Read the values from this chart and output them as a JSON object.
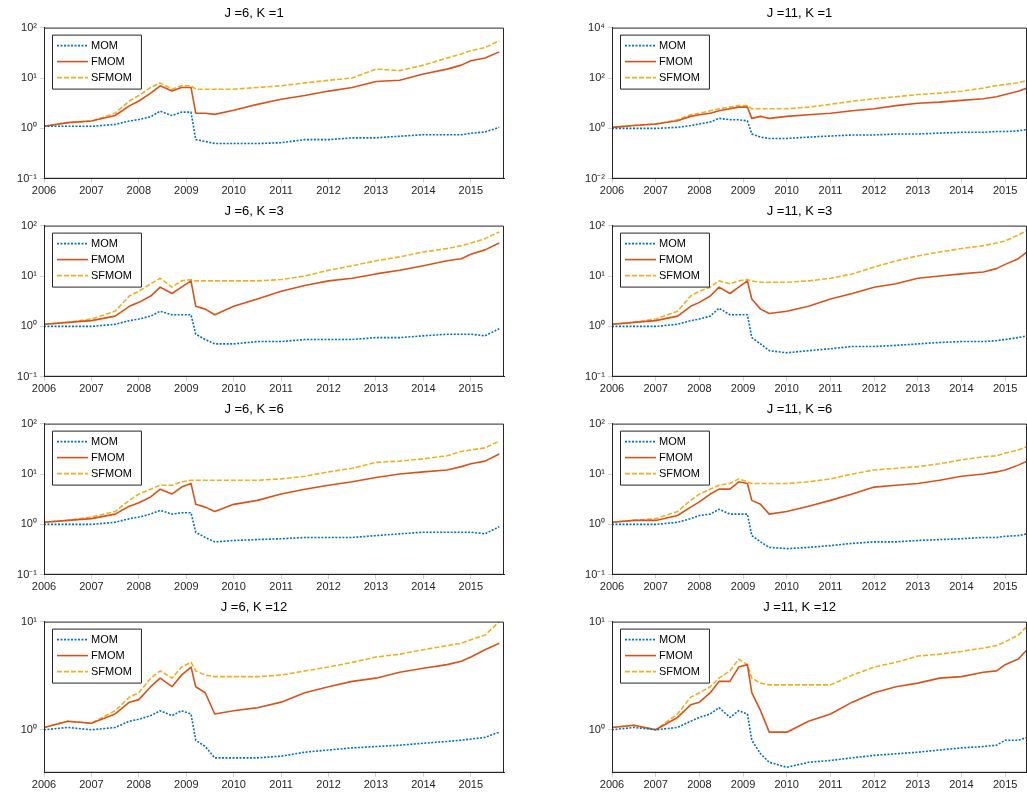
{
  "chart_data": [
    {
      "type": "line",
      "title": "J =6, K =1",
      "legend": "top left",
      "log": "y",
      "xlim": [
        2006,
        2015.7
      ],
      "xticks": [
        2006,
        2007,
        2008,
        2009,
        2010,
        2011,
        2012,
        2013,
        2014,
        2015
      ],
      "ylim": [
        0.1,
        100
      ],
      "yticks": [
        {
          "value": 0.1,
          "label": "10⁻¹"
        },
        {
          "value": 1,
          "label": "10⁰"
        },
        {
          "value": 10,
          "label": "10¹"
        },
        {
          "value": 100,
          "label": "10²"
        }
      ],
      "x": [
        2006,
        2006.5,
        2007,
        2007.5,
        2007.8,
        2008,
        2008.25,
        2008.45,
        2008.7,
        2008.9,
        2009.1,
        2009.2,
        2009.4,
        2009.6,
        2010,
        2010.5,
        2011,
        2011.5,
        2012,
        2012.5,
        2013,
        2013.5,
        2014,
        2014.5,
        2014.8,
        2015,
        2015.3,
        2015.6
      ],
      "series": [
        {
          "name": "MOM",
          "color": "#0072bd",
          "line_style": "dotted",
          "values": [
            1.1,
            1.1,
            1.1,
            1.2,
            1.4,
            1.5,
            1.7,
            2.2,
            1.8,
            2.1,
            2.1,
            0.6,
            0.55,
            0.5,
            0.5,
            0.5,
            0.52,
            0.6,
            0.6,
            0.65,
            0.65,
            0.7,
            0.75,
            0.75,
            0.75,
            0.8,
            0.85,
            1.05
          ]
        },
        {
          "name": "FMOM",
          "color": "#d95319",
          "line_style": "solid",
          "values": [
            1.1,
            1.3,
            1.4,
            1.8,
            2.8,
            3.5,
            5,
            7,
            5.5,
            6.5,
            6.5,
            2,
            2,
            1.9,
            2.3,
            3,
            3.8,
            4.5,
            5.5,
            6.5,
            8.5,
            9,
            12,
            15,
            18,
            22,
            25,
            33
          ]
        },
        {
          "name": "SFMOM",
          "color": "#edb120",
          "line_style": "dashed",
          "values": [
            1.1,
            1.3,
            1.4,
            2,
            3.5,
            4.5,
            6.5,
            8,
            6,
            7,
            7,
            6,
            6,
            6,
            6,
            6.5,
            7,
            8,
            9,
            10,
            15,
            14,
            18,
            25,
            30,
            35,
            40,
            55
          ]
        }
      ]
    },
    {
      "type": "line",
      "title": "J =11, K =1",
      "legend": "top left",
      "log": "y",
      "xlim": [
        2006,
        2015.5
      ],
      "xticks": [
        2006,
        2007,
        2008,
        2009,
        2010,
        2011,
        2012,
        2013,
        2014,
        2015
      ],
      "ylim": [
        0.01,
        10000
      ],
      "yticks": [
        {
          "value": 0.01,
          "label": "10⁻²"
        },
        {
          "value": 1,
          "label": "10⁰"
        },
        {
          "value": 100,
          "label": "10²"
        },
        {
          "value": 10000,
          "label": "10⁴"
        }
      ],
      "x": [
        2006,
        2006.5,
        2007,
        2007.5,
        2007.8,
        2008,
        2008.25,
        2008.45,
        2008.7,
        2008.9,
        2009.1,
        2009.2,
        2009.4,
        2009.6,
        2010,
        2010.5,
        2011,
        2011.5,
        2012,
        2012.5,
        2013,
        2013.5,
        2014,
        2014.5,
        2014.8,
        2015,
        2015.3,
        2015.5
      ],
      "series": [
        {
          "name": "MOM",
          "color": "#0072bd",
          "line_style": "dotted",
          "values": [
            1,
            1,
            1,
            1.1,
            1.3,
            1.5,
            1.8,
            2.5,
            2.2,
            2.2,
            2,
            0.6,
            0.45,
            0.4,
            0.4,
            0.45,
            0.5,
            0.55,
            0.55,
            0.6,
            0.6,
            0.65,
            0.7,
            0.7,
            0.75,
            0.75,
            0.8,
            0.9
          ]
        },
        {
          "name": "FMOM",
          "color": "#d95319",
          "line_style": "solid",
          "values": [
            1.1,
            1.3,
            1.5,
            2,
            3,
            3.5,
            4,
            5,
            6,
            7,
            7,
            2.5,
            3,
            2.5,
            3,
            3.5,
            4,
            5,
            6,
            8,
            10,
            11,
            13,
            15,
            18,
            22,
            30,
            40
          ]
        },
        {
          "name": "SFMOM",
          "color": "#edb120",
          "line_style": "dashed",
          "values": [
            1.1,
            1.3,
            1.5,
            2.2,
            3.5,
            4,
            5,
            6,
            7,
            8,
            8,
            6,
            6,
            6,
            6,
            7,
            9,
            12,
            15,
            18,
            22,
            25,
            30,
            40,
            50,
            55,
            65,
            80
          ]
        }
      ]
    },
    {
      "type": "line",
      "title": "J =6, K =3",
      "legend": "top left",
      "log": "y",
      "xlim": [
        2006,
        2015.7
      ],
      "xticks": [
        2006,
        2007,
        2008,
        2009,
        2010,
        2011,
        2012,
        2013,
        2014,
        2015
      ],
      "ylim": [
        0.1,
        100
      ],
      "yticks": [
        {
          "value": 0.1,
          "label": "10⁻¹"
        },
        {
          "value": 1,
          "label": "10⁰"
        },
        {
          "value": 10,
          "label": "10¹"
        },
        {
          "value": 100,
          "label": "10²"
        }
      ],
      "x": [
        2006,
        2006.5,
        2007,
        2007.5,
        2007.8,
        2008,
        2008.25,
        2008.45,
        2008.7,
        2008.9,
        2009.1,
        2009.2,
        2009.4,
        2009.6,
        2010,
        2010.5,
        2011,
        2011.5,
        2012,
        2012.5,
        2013,
        2013.5,
        2014,
        2014.5,
        2014.8,
        2015,
        2015.3,
        2015.6
      ],
      "series": [
        {
          "name": "MOM",
          "color": "#0072bd",
          "line_style": "dotted",
          "values": [
            1,
            1,
            1,
            1.1,
            1.3,
            1.4,
            1.6,
            2,
            1.7,
            1.7,
            1.7,
            0.7,
            0.55,
            0.45,
            0.45,
            0.5,
            0.5,
            0.55,
            0.55,
            0.55,
            0.6,
            0.6,
            0.65,
            0.7,
            0.7,
            0.7,
            0.65,
            0.9
          ]
        },
        {
          "name": "FMOM",
          "color": "#d95319",
          "line_style": "solid",
          "values": [
            1.1,
            1.2,
            1.3,
            1.6,
            2.5,
            3,
            4,
            6,
            4.5,
            6,
            8,
            2.5,
            2.2,
            1.7,
            2.5,
            3.5,
            5,
            6.5,
            8,
            9,
            11,
            13,
            16,
            20,
            22,
            27,
            33,
            45
          ]
        },
        {
          "name": "SFMOM",
          "color": "#edb120",
          "line_style": "dashed",
          "values": [
            1.1,
            1.2,
            1.4,
            2,
            4,
            5,
            7,
            9,
            6,
            8,
            8.5,
            8,
            8,
            8,
            8,
            8,
            8.5,
            10,
            13,
            16,
            20,
            24,
            30,
            35,
            40,
            45,
            55,
            75
          ]
        }
      ]
    },
    {
      "type": "line",
      "title": "J =11, K =3",
      "legend": "top left",
      "log": "y",
      "xlim": [
        2006,
        2015.5
      ],
      "xticks": [
        2006,
        2007,
        2008,
        2009,
        2010,
        2011,
        2012,
        2013,
        2014,
        2015
      ],
      "ylim": [
        0.1,
        100
      ],
      "yticks": [
        {
          "value": 0.1,
          "label": "10⁻¹"
        },
        {
          "value": 1,
          "label": "10⁰"
        },
        {
          "value": 10,
          "label": "10¹"
        },
        {
          "value": 100,
          "label": "10²"
        }
      ],
      "x": [
        2006,
        2006.5,
        2007,
        2007.5,
        2007.8,
        2008,
        2008.25,
        2008.45,
        2008.7,
        2008.9,
        2009.1,
        2009.2,
        2009.4,
        2009.6,
        2010,
        2010.5,
        2011,
        2011.5,
        2012,
        2012.5,
        2013,
        2013.5,
        2014,
        2014.5,
        2014.8,
        2015,
        2015.3,
        2015.5
      ],
      "series": [
        {
          "name": "MOM",
          "color": "#0072bd",
          "line_style": "dotted",
          "values": [
            1,
            1,
            1,
            1.1,
            1.3,
            1.4,
            1.6,
            2.3,
            1.7,
            1.7,
            1.7,
            0.6,
            0.45,
            0.33,
            0.3,
            0.33,
            0.36,
            0.4,
            0.4,
            0.42,
            0.45,
            0.48,
            0.5,
            0.5,
            0.52,
            0.55,
            0.6,
            0.65
          ]
        },
        {
          "name": "FMOM",
          "color": "#d95319",
          "line_style": "solid",
          "values": [
            1.1,
            1.2,
            1.3,
            1.6,
            2.5,
            3,
            4,
            6,
            4.5,
            6,
            8,
            3.5,
            2.2,
            1.8,
            2,
            2.5,
            3.5,
            4.5,
            6,
            7,
            9,
            10,
            11,
            12,
            14,
            17,
            22,
            30
          ]
        },
        {
          "name": "SFMOM",
          "color": "#edb120",
          "line_style": "dashed",
          "values": [
            1.1,
            1.2,
            1.4,
            2,
            4,
            5,
            6,
            8,
            7,
            8,
            8.5,
            8,
            7.5,
            7.5,
            7.5,
            8,
            9,
            11,
            15,
            20,
            25,
            30,
            35,
            40,
            45,
            50,
            65,
            80
          ]
        }
      ]
    },
    {
      "type": "line",
      "title": "J =6, K =6",
      "legend": "top left",
      "log": "y",
      "xlim": [
        2006,
        2015.7
      ],
      "xticks": [
        2006,
        2007,
        2008,
        2009,
        2010,
        2011,
        2012,
        2013,
        2014,
        2015
      ],
      "ylim": [
        0.1,
        100
      ],
      "yticks": [
        {
          "value": 0.1,
          "label": "10⁻¹"
        },
        {
          "value": 1,
          "label": "10⁰"
        },
        {
          "value": 10,
          "label": "10¹"
        },
        {
          "value": 100,
          "label": "10²"
        }
      ],
      "x": [
        2006,
        2006.5,
        2007,
        2007.5,
        2007.8,
        2008,
        2008.25,
        2008.45,
        2008.7,
        2008.9,
        2009.1,
        2009.2,
        2009.4,
        2009.6,
        2010,
        2010.5,
        2011,
        2011.5,
        2012,
        2012.5,
        2013,
        2013.5,
        2014,
        2014.5,
        2014.8,
        2015,
        2015.3,
        2015.6
      ],
      "series": [
        {
          "name": "MOM",
          "color": "#0072bd",
          "line_style": "dotted",
          "values": [
            1,
            1,
            1,
            1.1,
            1.3,
            1.4,
            1.6,
            1.9,
            1.6,
            1.7,
            1.7,
            0.7,
            0.55,
            0.45,
            0.48,
            0.5,
            0.52,
            0.55,
            0.55,
            0.55,
            0.6,
            0.65,
            0.7,
            0.7,
            0.7,
            0.7,
            0.65,
            0.9
          ]
        },
        {
          "name": "FMOM",
          "color": "#d95319",
          "line_style": "solid",
          "values": [
            1.1,
            1.2,
            1.3,
            1.6,
            2.3,
            2.7,
            3.5,
            5,
            4,
            5.5,
            6.5,
            2.5,
            2.2,
            1.8,
            2.5,
            3,
            4,
            5,
            6,
            7,
            8.5,
            10,
            11,
            12,
            14,
            16,
            18,
            25
          ]
        },
        {
          "name": "SFMOM",
          "color": "#edb120",
          "line_style": "dashed",
          "values": [
            1.1,
            1.2,
            1.4,
            1.8,
            3,
            4,
            5,
            6,
            6,
            7,
            7.5,
            7.5,
            7.5,
            7.5,
            7.5,
            7.5,
            8,
            9,
            11,
            13,
            17,
            18,
            20,
            23,
            28,
            30,
            33,
            45
          ]
        }
      ]
    },
    {
      "type": "line",
      "title": "J =11, K =6",
      "legend": "top left",
      "log": "y",
      "xlim": [
        2006,
        2015.5
      ],
      "xticks": [
        2006,
        2007,
        2008,
        2009,
        2010,
        2011,
        2012,
        2013,
        2014,
        2015
      ],
      "ylim": [
        0.1,
        100
      ],
      "yticks": [
        {
          "value": 0.1,
          "label": "10⁻¹"
        },
        {
          "value": 1,
          "label": "10⁰"
        },
        {
          "value": 10,
          "label": "10¹"
        },
        {
          "value": 100,
          "label": "10²"
        }
      ],
      "x": [
        2006,
        2006.5,
        2007,
        2007.5,
        2007.8,
        2008,
        2008.25,
        2008.45,
        2008.7,
        2008.9,
        2009.1,
        2009.2,
        2009.4,
        2009.6,
        2010,
        2010.5,
        2011,
        2011.5,
        2012,
        2012.5,
        2013,
        2013.5,
        2014,
        2014.5,
        2014.8,
        2015,
        2015.3,
        2015.5
      ],
      "series": [
        {
          "name": "MOM",
          "color": "#0072bd",
          "line_style": "dotted",
          "values": [
            1,
            1,
            1,
            1.1,
            1.3,
            1.5,
            1.6,
            2,
            1.6,
            1.6,
            1.6,
            0.6,
            0.45,
            0.35,
            0.33,
            0.35,
            0.38,
            0.42,
            0.45,
            0.45,
            0.48,
            0.5,
            0.52,
            0.55,
            0.55,
            0.58,
            0.6,
            0.65
          ]
        },
        {
          "name": "FMOM",
          "color": "#d95319",
          "line_style": "solid",
          "values": [
            1.1,
            1.2,
            1.2,
            1.5,
            2.2,
            2.8,
            4,
            5,
            5,
            7,
            6.5,
            3,
            2.5,
            1.6,
            1.8,
            2.3,
            3,
            4,
            5.5,
            6,
            6.5,
            7.5,
            9,
            10,
            11,
            12,
            15,
            18
          ]
        },
        {
          "name": "SFMOM",
          "color": "#edb120",
          "line_style": "dashed",
          "values": [
            1.1,
            1.2,
            1.3,
            1.8,
            3,
            4,
            5,
            6,
            6.5,
            8,
            7,
            6.5,
            6.5,
            6.5,
            6.5,
            7,
            8,
            10,
            12,
            13,
            14,
            16,
            19,
            22,
            23,
            26,
            30,
            35
          ]
        }
      ]
    },
    {
      "type": "line",
      "title": "J =6, K =12",
      "legend": "top left",
      "log": "y",
      "xlim": [
        2006,
        2015.7
      ],
      "xticks": [
        2006,
        2007,
        2008,
        2009,
        2010,
        2011,
        2012,
        2013,
        2014,
        2015
      ],
      "ylim": [
        0.4,
        10
      ],
      "yticks": [
        {
          "value": 1,
          "label": "10⁰"
        },
        {
          "value": 10,
          "label": "10¹"
        }
      ],
      "x": [
        2006,
        2006.5,
        2007,
        2007.5,
        2007.8,
        2008,
        2008.25,
        2008.45,
        2008.7,
        2008.9,
        2009.1,
        2009.2,
        2009.4,
        2009.6,
        2010,
        2010.5,
        2011,
        2011.5,
        2012,
        2012.5,
        2013,
        2013.5,
        2014,
        2014.5,
        2014.8,
        2015,
        2015.3,
        2015.6
      ],
      "series": [
        {
          "name": "MOM",
          "color": "#0072bd",
          "line_style": "dotted",
          "values": [
            1,
            1.05,
            1,
            1.05,
            1.2,
            1.25,
            1.35,
            1.5,
            1.35,
            1.5,
            1.4,
            0.8,
            0.7,
            0.55,
            0.55,
            0.55,
            0.57,
            0.62,
            0.65,
            0.68,
            0.7,
            0.72,
            0.75,
            0.78,
            0.8,
            0.82,
            0.85,
            0.95
          ]
        },
        {
          "name": "FMOM",
          "color": "#d95319",
          "line_style": "solid",
          "values": [
            1.05,
            1.2,
            1.15,
            1.4,
            1.8,
            1.9,
            2.5,
            3,
            2.5,
            3.2,
            3.8,
            2.5,
            2.2,
            1.4,
            1.5,
            1.6,
            1.8,
            2.2,
            2.5,
            2.8,
            3,
            3.4,
            3.7,
            4,
            4.3,
            4.7,
            5.5,
            6.3
          ]
        },
        {
          "name": "SFMOM",
          "color": "#edb120",
          "line_style": "dashed",
          "values": [
            1.05,
            1.2,
            1.15,
            1.5,
            2,
            2.2,
            3,
            3.5,
            3,
            3.8,
            4.2,
            3.5,
            3.2,
            3.1,
            3.1,
            3.1,
            3.2,
            3.5,
            3.8,
            4.2,
            4.7,
            5,
            5.5,
            6,
            6.3,
            6.8,
            7.5,
            10
          ]
        }
      ]
    },
    {
      "type": "line",
      "title": "J =11, K =12",
      "legend": "top left",
      "log": "y",
      "xlim": [
        2006,
        2015.5
      ],
      "xticks": [
        2006,
        2007,
        2008,
        2009,
        2010,
        2011,
        2012,
        2013,
        2014,
        2015
      ],
      "ylim": [
        0.4,
        10
      ],
      "yticks": [
        {
          "value": 1,
          "label": "10⁰"
        },
        {
          "value": 10,
          "label": "10¹"
        }
      ],
      "x": [
        2006,
        2006.5,
        2007,
        2007.5,
        2007.8,
        2008,
        2008.25,
        2008.45,
        2008.7,
        2008.9,
        2009.1,
        2009.2,
        2009.4,
        2009.6,
        2010,
        2010.5,
        2011,
        2011.5,
        2012,
        2012.5,
        2013,
        2013.5,
        2014,
        2014.5,
        2014.8,
        2015,
        2015.3,
        2015.5
      ],
      "series": [
        {
          "name": "MOM",
          "color": "#0072bd",
          "line_style": "dotted",
          "values": [
            1,
            1.05,
            1,
            1.05,
            1.2,
            1.3,
            1.4,
            1.6,
            1.3,
            1.5,
            1.4,
            0.8,
            0.6,
            0.5,
            0.45,
            0.5,
            0.52,
            0.55,
            0.58,
            0.6,
            0.62,
            0.65,
            0.68,
            0.7,
            0.72,
            0.8,
            0.8,
            0.85
          ]
        },
        {
          "name": "FMOM",
          "color": "#d95319",
          "line_style": "solid",
          "values": [
            1.05,
            1.1,
            1,
            1.3,
            1.7,
            1.8,
            2.2,
            2.8,
            2.8,
            3.8,
            4,
            2.2,
            1.5,
            0.95,
            0.95,
            1.2,
            1.4,
            1.8,
            2.2,
            2.5,
            2.7,
            3,
            3.1,
            3.4,
            3.5,
            4,
            4.5,
            5.5
          ]
        },
        {
          "name": "SFMOM",
          "color": "#edb120",
          "line_style": "dashed",
          "values": [
            1.05,
            1.1,
            1,
            1.4,
            2,
            2.2,
            2.5,
            3,
            3.5,
            4.5,
            4,
            3,
            2.7,
            2.6,
            2.6,
            2.6,
            2.6,
            3.2,
            3.8,
            4.2,
            4.8,
            5,
            5.3,
            5.7,
            6,
            6.5,
            7.5,
            9
          ]
        }
      ]
    }
  ]
}
